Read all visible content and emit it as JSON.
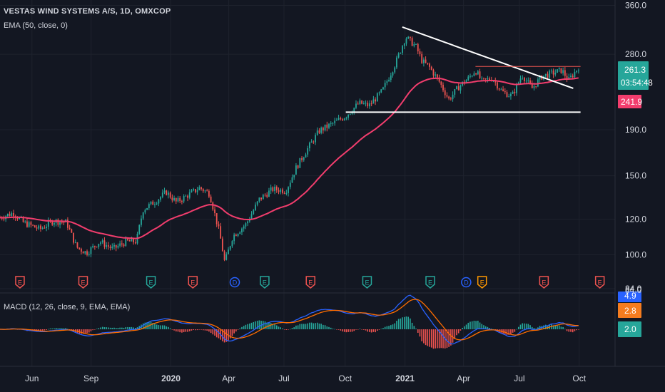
{
  "header": {
    "title": "VESTAS WIND SYSTEMS A/S, 1D, OMXCOP",
    "ema_label": "EMA (50, close, 0)",
    "macd_label": "MACD (12, 26, close, 9, EMA, EMA)"
  },
  "price_axis": {
    "ticks": [
      360.0,
      280.0,
      190.0,
      150.0,
      120.0,
      100.0,
      84.0
    ],
    "tick_labels": [
      "360.0",
      "280.0",
      "190.0",
      "150.0",
      "120.0",
      "100.0",
      "84.0"
    ],
    "scale": "log",
    "range": [
      84,
      370
    ]
  },
  "price_badges": {
    "last": "261.3",
    "countdown": "03:54:48",
    "ema": "241.9"
  },
  "macd_badges": {
    "top": "4.9",
    "signal": "2.8",
    "hist": "2.0"
  },
  "time_axis": {
    "labels": [
      "Jun",
      "Sep",
      "2020",
      "Apr",
      "Jul",
      "Oct",
      "2021",
      "Apr",
      "Jul",
      "Oct"
    ],
    "bold": [
      false,
      false,
      true,
      false,
      false,
      false,
      true,
      false,
      false,
      false
    ],
    "positions": [
      0.048,
      0.137,
      0.257,
      0.344,
      0.427,
      0.519,
      0.609,
      0.697,
      0.781,
      0.871
    ]
  },
  "events": {
    "types": [
      "E",
      "E",
      "E",
      "E",
      "D",
      "E",
      "E",
      "E",
      "E",
      "D",
      "E",
      "E",
      "E"
    ],
    "positions": [
      0.03,
      0.125,
      0.227,
      0.29,
      0.353,
      0.398,
      0.467,
      0.552,
      0.647,
      0.701,
      0.725,
      0.818,
      0.902
    ],
    "kinds": [
      "earn",
      "earn",
      "div",
      "earn",
      "dvd",
      "div",
      "earn",
      "div",
      "div",
      "dvd",
      "earnO",
      "earn",
      "earn"
    ]
  },
  "chart_data": {
    "type": "candlestick",
    "symbol": "VESTAS WIND SYSTEMS A/S",
    "interval": "1D",
    "exchange": "OMXCOP",
    "price_waypoints": [
      [
        0.0,
        121
      ],
      [
        0.02,
        124
      ],
      [
        0.035,
        118
      ],
      [
        0.06,
        114
      ],
      [
        0.08,
        119
      ],
      [
        0.1,
        118
      ],
      [
        0.115,
        104
      ],
      [
        0.13,
        101
      ],
      [
        0.15,
        107
      ],
      [
        0.17,
        103
      ],
      [
        0.19,
        107
      ],
      [
        0.205,
        107
      ],
      [
        0.215,
        126
      ],
      [
        0.235,
        132
      ],
      [
        0.25,
        138
      ],
      [
        0.265,
        131
      ],
      [
        0.28,
        135
      ],
      [
        0.3,
        141
      ],
      [
        0.315,
        137
      ],
      [
        0.33,
        112
      ],
      [
        0.338,
        96
      ],
      [
        0.35,
        110
      ],
      [
        0.37,
        117
      ],
      [
        0.39,
        133
      ],
      [
        0.41,
        140
      ],
      [
        0.43,
        139
      ],
      [
        0.445,
        156
      ],
      [
        0.46,
        170
      ],
      [
        0.48,
        189
      ],
      [
        0.5,
        196
      ],
      [
        0.52,
        204
      ],
      [
        0.54,
        218
      ],
      [
        0.555,
        215
      ],
      [
        0.575,
        232
      ],
      [
        0.595,
        268
      ],
      [
        0.61,
        306
      ],
      [
        0.625,
        292
      ],
      [
        0.635,
        270
      ],
      [
        0.645,
        263
      ],
      [
        0.66,
        244
      ],
      [
        0.675,
        222
      ],
      [
        0.69,
        237
      ],
      [
        0.705,
        248
      ],
      [
        0.715,
        258
      ],
      [
        0.725,
        243
      ],
      [
        0.74,
        248
      ],
      [
        0.755,
        231
      ],
      [
        0.77,
        226
      ],
      [
        0.785,
        252
      ],
      [
        0.8,
        235
      ],
      [
        0.815,
        250
      ],
      [
        0.83,
        254
      ],
      [
        0.845,
        258
      ],
      [
        0.855,
        245
      ],
      [
        0.87,
        262
      ]
    ],
    "trendlines": [
      {
        "name": "descending-resistance",
        "from": [
          0.605,
          322
        ],
        "to": [
          0.862,
          235
        ]
      },
      {
        "name": "support",
        "from": [
          0.52,
          208
        ],
        "to": [
          0.873,
          208
        ]
      },
      {
        "name": "horizontal-resistance",
        "from": [
          0.715,
          263
        ],
        "to": [
          0.873,
          263
        ]
      }
    ],
    "last_price": 261.3,
    "ema_50": 241.9,
    "macd": {
      "macd": 4.9,
      "signal": 2.8,
      "histogram": 2.0
    }
  }
}
